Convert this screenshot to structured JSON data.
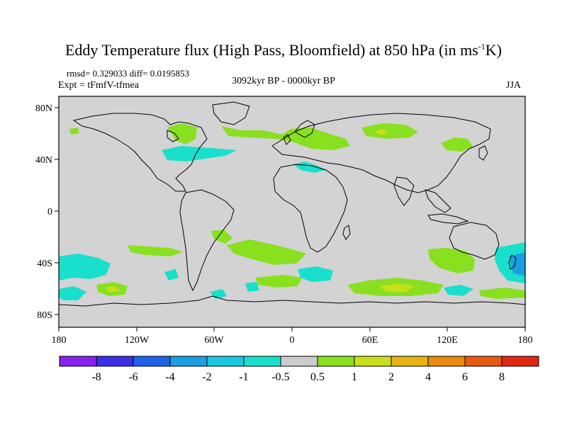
{
  "title_main": "Eddy Temperature flux (High Pass, Bloomfield) at 850 hPa (in ms",
  "title_sup": "-1",
  "title_end": "K)",
  "rmsd_line": "rmsd= 0.329033 diff= 0.0195853",
  "expt_line": "Expt = tFmfV-tfmea",
  "period": "3092kyr BP - 0000kyr BP",
  "season": "JJA",
  "map": {
    "background_color": "#d3d3d3",
    "lat_labels": [
      "80N",
      "40N",
      "0",
      "40S",
      "80S"
    ],
    "lon_labels": [
      "180",
      "120W",
      "60W",
      "0",
      "60E",
      "120E",
      "180"
    ]
  },
  "colorbar": {
    "colors": [
      "#8c20f0",
      "#3a2ee6",
      "#1f63e8",
      "#1b9fe4",
      "#19c8e0",
      "#18e0cc",
      "#cccccc",
      "#88e01f",
      "#c8e01a",
      "#e8b40f",
      "#ec8a0e",
      "#e85a10",
      "#e02810"
    ],
    "labels": [
      "-8",
      "-6",
      "-4",
      "-2",
      "-1",
      "-0.5",
      "0.5",
      "1",
      "2",
      "4",
      "6",
      "8"
    ]
  }
}
